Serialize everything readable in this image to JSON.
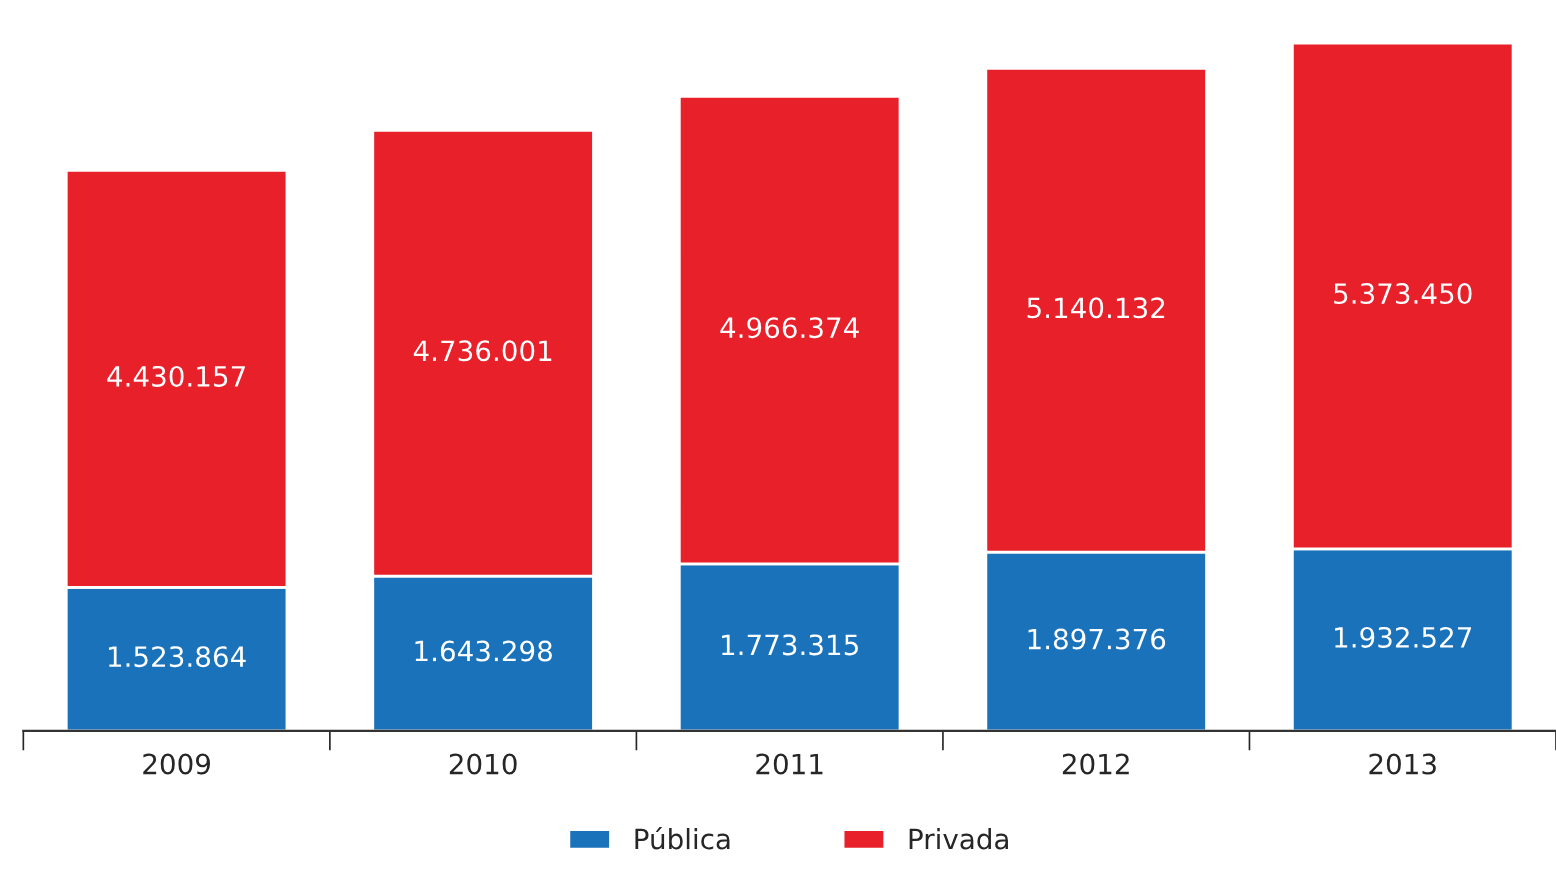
{
  "chart_data": {
    "type": "bar",
    "stacked": true,
    "categories": [
      "2009",
      "2010",
      "2011",
      "2012",
      "2013"
    ],
    "series": [
      {
        "name": "Pública",
        "color": "#1a72bb",
        "values": [
          1523864,
          1643298,
          1773315,
          1897376,
          1932527
        ],
        "value_labels": [
          "1.523.864",
          "1.643.298",
          "1.773.315",
          "1.897.376",
          "1.932.527"
        ]
      },
      {
        "name": "Privada",
        "color": "#e8202a",
        "values": [
          4430157,
          4736001,
          4966374,
          5140132,
          5373450
        ],
        "value_labels": [
          "4.430.157",
          "4.736.001",
          "4.966.374",
          "5.140.132",
          "5.373.450"
        ]
      }
    ],
    "legend": "bottom",
    "grid": false
  }
}
